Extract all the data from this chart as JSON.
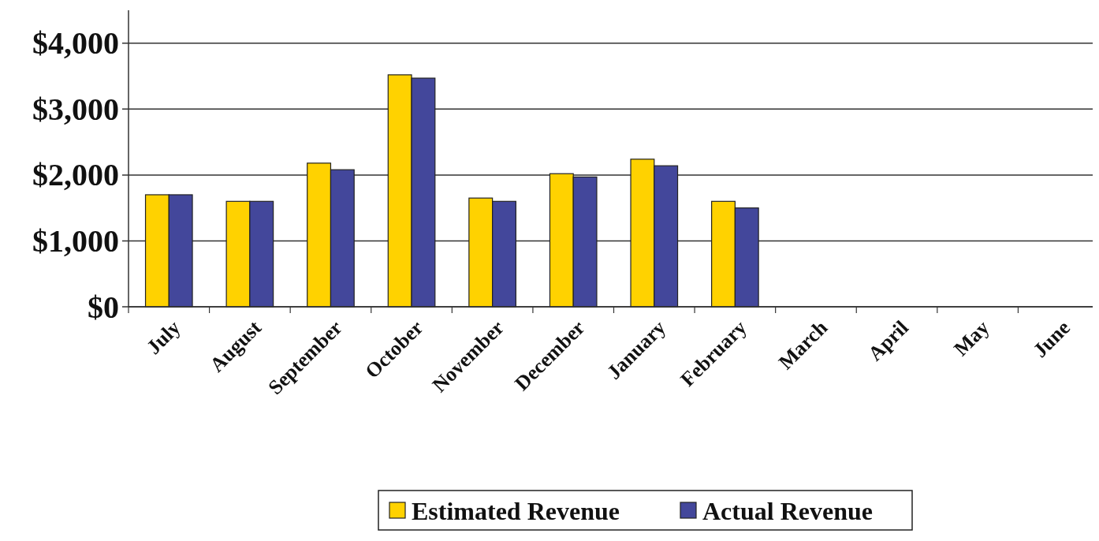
{
  "chart_data": {
    "type": "bar",
    "categories": [
      "July",
      "August",
      "September",
      "October",
      "November",
      "December",
      "January",
      "February",
      "March",
      "April",
      "May",
      "June"
    ],
    "series": [
      {
        "name": "Estimated Revenue",
        "color": "#ffd200",
        "values": [
          1700,
          1600,
          2180,
          3520,
          1650,
          2020,
          2240,
          1600,
          null,
          null,
          null,
          null
        ]
      },
      {
        "name": "Actual Revenue",
        "color": "#43479b",
        "values": [
          1700,
          1600,
          2080,
          3470,
          1600,
          1970,
          2140,
          1500,
          null,
          null,
          null,
          null
        ]
      }
    ],
    "ylim": [
      0,
      4500
    ],
    "yticks": [
      {
        "value": 0,
        "label": "$0"
      },
      {
        "value": 1000,
        "label": "$1,000"
      },
      {
        "value": 2000,
        "label": "$2,000"
      },
      {
        "value": 3000,
        "label": "$3,000"
      },
      {
        "value": 4000,
        "label": "$4,000"
      }
    ],
    "grid": "y",
    "legend": "bottom"
  }
}
